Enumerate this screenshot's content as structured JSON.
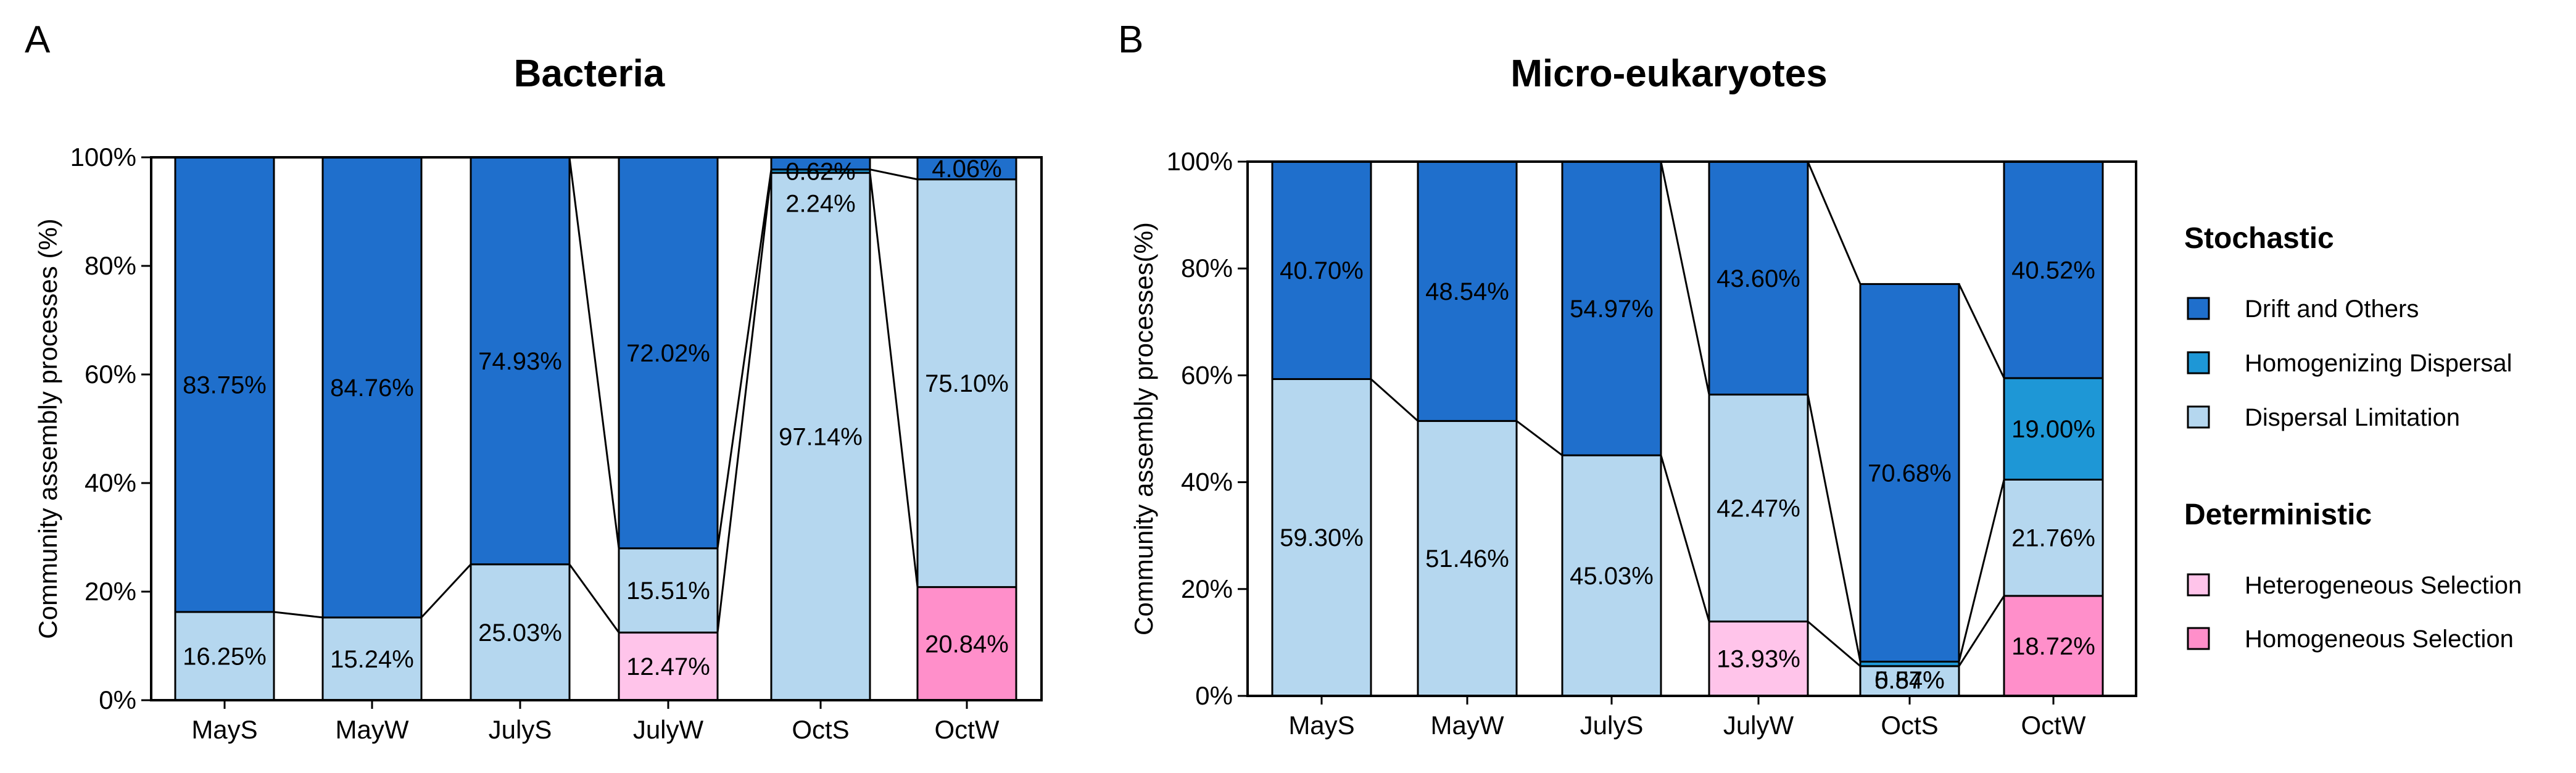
{
  "colors": {
    "drift": "#1f6fcc",
    "homogenizing": "#1e97d6",
    "dispersal": "#b5d7ef",
    "heterogeneous": "#ffc4ea",
    "homogeneous": "#ff8fca"
  },
  "legend": {
    "stochastic_header": "Stochastic",
    "deterministic_header": "Deterministic",
    "items": [
      {
        "label": "Drift and Others",
        "color_key": "drift"
      },
      {
        "label": "Homogenizing Dispersal",
        "color_key": "homogenizing"
      },
      {
        "label": "Dispersal Limitation",
        "color_key": "dispersal"
      },
      {
        "label": "Heterogeneous Selection",
        "color_key": "heterogeneous"
      },
      {
        "label": "Homogeneous Selection",
        "color_key": "homogeneous"
      }
    ]
  },
  "chart_data": [
    {
      "panel": "A",
      "type": "bar",
      "stacked": true,
      "title": "Bacteria",
      "ylabel": "Community assembly processes (%)",
      "xlabel": "",
      "ylim": [
        0,
        100
      ],
      "yticks": [
        "0%",
        "20%",
        "40%",
        "60%",
        "80%",
        "100%"
      ],
      "categories": [
        "MayS",
        "MayW",
        "JulyS",
        "JulyW",
        "OctS",
        "OctW"
      ],
      "series": [
        {
          "name": "Homogeneous Selection",
          "color_key": "homogeneous",
          "values": [
            0,
            0,
            0,
            0,
            0,
            20.84
          ],
          "labels": [
            "",
            "",
            "",
            "",
            "",
            "20.84%"
          ]
        },
        {
          "name": "Heterogeneous Selection",
          "color_key": "heterogeneous",
          "values": [
            0,
            0,
            0,
            12.47,
            0,
            0
          ],
          "labels": [
            "",
            "",
            "",
            "12.47%",
            "",
            ""
          ]
        },
        {
          "name": "Dispersal Limitation",
          "color_key": "dispersal",
          "values": [
            16.25,
            15.24,
            25.03,
            15.51,
            97.14,
            75.1
          ],
          "labels": [
            "16.25%",
            "15.24%",
            "25.03%",
            "15.51%",
            "97.14%",
            "75.10%"
          ]
        },
        {
          "name": "Homogenizing Dispersal",
          "color_key": "homogenizing",
          "values": [
            0,
            0,
            0,
            0,
            0.62,
            0
          ],
          "labels": [
            "",
            "",
            "",
            "",
            "0.62%",
            ""
          ]
        },
        {
          "name": "Drift and Others",
          "color_key": "drift",
          "values": [
            83.75,
            84.76,
            74.93,
            72.02,
            2.24,
            4.06
          ],
          "labels": [
            "83.75%",
            "84.76%",
            "74.93%",
            "72.02%",
            "2.24%",
            "4.06%"
          ]
        }
      ]
    },
    {
      "panel": "B",
      "type": "bar",
      "stacked": true,
      "title": "Micro-eukaryotes",
      "ylabel": "Community assembly processes(%)",
      "xlabel": "",
      "ylim": [
        0,
        100
      ],
      "yticks": [
        "0%",
        "20%",
        "40%",
        "60%",
        "80%",
        "100%"
      ],
      "categories": [
        "MayS",
        "MayW",
        "JulyS",
        "JulyW",
        "OctS",
        "OctW"
      ],
      "series": [
        {
          "name": "Homogeneous Selection",
          "color_key": "homogeneous",
          "values": [
            0,
            0,
            0,
            0,
            0,
            18.72
          ],
          "labels": [
            "",
            "",
            "",
            "",
            "",
            "18.72%"
          ]
        },
        {
          "name": "Heterogeneous Selection",
          "color_key": "heterogeneous",
          "values": [
            0,
            0,
            0,
            13.93,
            0,
            0
          ],
          "labels": [
            "",
            "",
            "",
            "13.93%",
            "",
            ""
          ]
        },
        {
          "name": "Dispersal Limitation",
          "color_key": "dispersal",
          "values": [
            59.3,
            51.46,
            45.03,
            42.47,
            5.57,
            21.76
          ],
          "labels": [
            "59.30%",
            "51.46%",
            "45.03%",
            "42.47%",
            "5.57%",
            "21.76%"
          ]
        },
        {
          "name": "Homogenizing Dispersal",
          "color_key": "homogenizing",
          "values": [
            0,
            0,
            0,
            0,
            0.84,
            19.0
          ],
          "labels": [
            "",
            "",
            "",
            "",
            "0.84%",
            "19.00%"
          ]
        },
        {
          "name": "Drift and Others",
          "color_key": "drift",
          "values": [
            40.7,
            48.54,
            54.97,
            43.6,
            70.68,
            40.52
          ],
          "labels": [
            "40.70%",
            "48.54%",
            "54.97%",
            "43.60%",
            "70.68%",
            "40.52%"
          ]
        }
      ]
    }
  ]
}
